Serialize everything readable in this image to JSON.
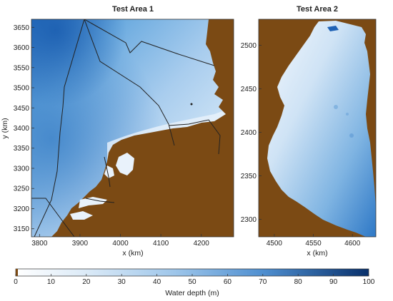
{
  "figure": {
    "panels": [
      {
        "title": "Test Area 1",
        "xlabel": "x (km)",
        "ylabel": "y (km)",
        "xlim": [
          3780,
          4280
        ],
        "ylim": [
          3130,
          3670
        ],
        "xticks": [
          "3800",
          "3900",
          "4000",
          "4100",
          "4200"
        ],
        "yticks": [
          "3150",
          "3200",
          "3250",
          "3300",
          "3350",
          "3400",
          "3450",
          "3500",
          "3550",
          "3600",
          "3650"
        ]
      },
      {
        "title": "Test Area 2",
        "xlabel": "x (km)",
        "ylabel": "",
        "xlim": [
          4480,
          4630
        ],
        "ylim": [
          2280,
          2530
        ],
        "xticks": [
          "4500",
          "4550",
          "4600"
        ],
        "yticks": [
          "2300",
          "2350",
          "2400",
          "2450",
          "2500"
        ]
      }
    ],
    "colorbar": {
      "label": "Water depth (m)",
      "min": 0,
      "max": 100,
      "ticks": [
        "0",
        "10",
        "20",
        "30",
        "40",
        "50",
        "60",
        "70",
        "80",
        "90",
        "100"
      ]
    },
    "colors": {
      "land": "#7b4a14",
      "shallow": "#ffffff",
      "deep": "#083a85"
    }
  }
}
